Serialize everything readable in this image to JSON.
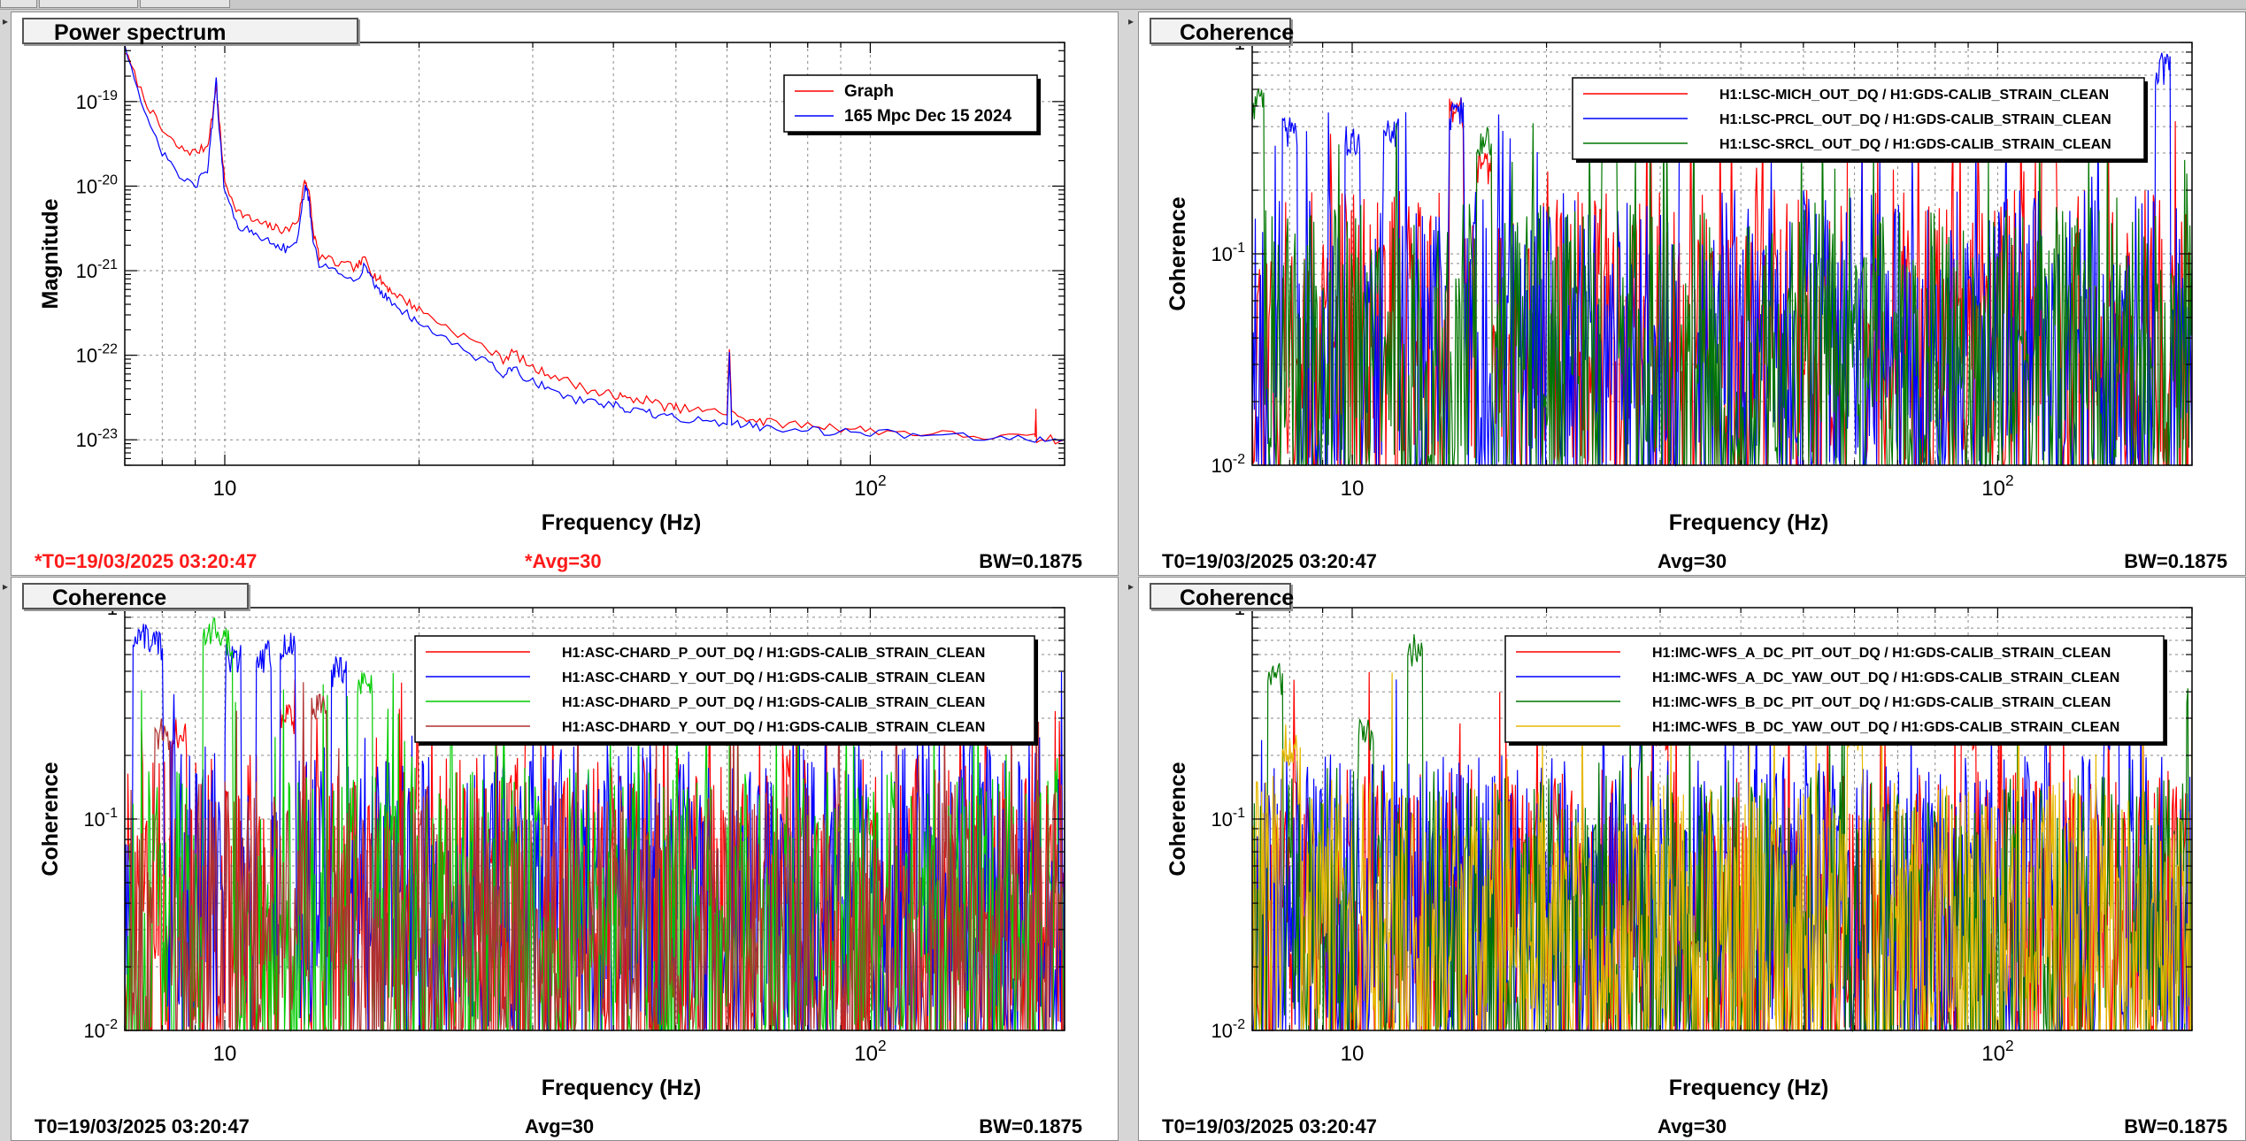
{
  "panels": [
    {
      "title": "Power spectrum",
      "footer": {
        "t0": "*T0=19/03/2025 03:20:47",
        "avg": "*Avg=30",
        "bw": "BW=0.1875",
        "highlight": true
      },
      "chart_data": {
        "type": "line",
        "title": "Power spectrum",
        "xlabel": "Frequency (Hz)",
        "ylabel": "Magnitude",
        "xscale": "log",
        "yscale": "log",
        "xlim": [
          7,
          200
        ],
        "ylim": [
          5e-24,
          5e-19
        ],
        "x_ticks": [
          10,
          100
        ],
        "x_tick_labels": [
          "10",
          "10^2"
        ],
        "y_ticks": [
          1e-23,
          1e-22,
          1e-21,
          1e-20,
          1e-19
        ],
        "y_tick_labels": [
          "10^-23",
          "10^-22",
          "10^-21",
          "10^-20",
          "10^-19"
        ],
        "grid": true,
        "legend_position": "top-right",
        "series": [
          {
            "name": "Graph",
            "color": "#ff0000",
            "x": [
              7,
              7.5,
              8,
              8.5,
              9,
              9.4,
              9.6,
              9.7,
              9.8,
              10,
              10.5,
              11,
              11.5,
              12,
              12.5,
              13,
              13.3,
              13.5,
              13.7,
              14,
              15,
              16,
              16.5,
              17,
              17.5,
              18,
              19,
              20,
              22,
              25,
              27,
              28,
              30,
              32,
              35,
              38,
              40,
              42,
              45,
              48,
              50,
              55,
              60,
              60.5,
              61,
              65,
              70,
              80,
              90,
              100,
              120,
              150,
              180,
              180.5,
              181,
              200
            ],
            "y": [
              4e-19,
              1.1e-19,
              4.5e-20,
              2.8e-20,
              2.5e-20,
              3e-20,
              8e-20,
              1.6e-19,
              6e-20,
              1.1e-20,
              5e-21,
              4e-21,
              3.5e-21,
              3.2e-21,
              3e-21,
              4e-21,
              1.2e-20,
              9e-21,
              3e-21,
              1.5e-21,
              1.2e-21,
              1.1e-21,
              1.4e-21,
              9e-22,
              7.5e-22,
              6e-22,
              4.5e-22,
              3.5e-22,
              2.2e-22,
              1.3e-22,
              9e-23,
              1.1e-22,
              7e-23,
              6e-23,
              4.5e-23,
              3.5e-23,
              3.5e-23,
              3e-23,
              3e-23,
              2.5e-23,
              2.4e-23,
              2.2e-23,
              2.1e-23,
              1.3e-22,
              2e-23,
              1.8e-23,
              1.6e-23,
              1.5e-23,
              1.4e-23,
              1.3e-23,
              1.2e-23,
              1.1e-23,
              1.05e-23,
              2.2e-23,
              1.05e-23,
              1e-23
            ]
          },
          {
            "name": "165 Mpc Dec 15 2024",
            "color": "#0000ff",
            "x": [
              7,
              7.5,
              8,
              8.5,
              9,
              9.4,
              9.6,
              9.7,
              9.8,
              10,
              10.5,
              11,
              11.5,
              12,
              12.5,
              13,
              13.3,
              13.5,
              13.7,
              14,
              15,
              16,
              16.5,
              17,
              17.5,
              18,
              19,
              20,
              22,
              25,
              27,
              28,
              30,
              32,
              35,
              38,
              40,
              42,
              45,
              48,
              50,
              55,
              60,
              60.5,
              61,
              65,
              70,
              80,
              90,
              100,
              120,
              150,
              180,
              200
            ],
            "y": [
              5e-19,
              7e-20,
              2.5e-20,
              1.3e-20,
              1e-20,
              1.6e-20,
              7e-20,
              1.8e-19,
              5e-20,
              8e-21,
              3.5e-21,
              2.8e-21,
              2.4e-21,
              2.1e-21,
              1.8e-21,
              2.5e-21,
              1e-20,
              7e-21,
              2.2e-21,
              1.2e-21,
              9e-22,
              8e-22,
              1.2e-21,
              7e-22,
              5.5e-22,
              4.5e-22,
              3.2e-22,
              2.5e-22,
              1.5e-22,
              9e-23,
              6e-23,
              7e-23,
              4.8e-23,
              4e-23,
              3e-23,
              2.6e-23,
              2.6e-23,
              2.2e-23,
              2.1e-23,
              1.9e-23,
              1.8e-23,
              1.7e-23,
              1.6e-23,
              1e-22,
              1.6e-23,
              1.5e-23,
              1.4e-23,
              1.3e-23,
              1.25e-23,
              1.2e-23,
              1.15e-23,
              1.1e-23,
              1.05e-23,
              1e-23
            ]
          }
        ]
      }
    },
    {
      "title": "Coherence",
      "footer": {
        "t0": "T0=19/03/2025 03:20:47",
        "avg": "Avg=30",
        "bw": "BW=0.1875",
        "highlight": false
      },
      "chart_data": {
        "type": "line",
        "title": "Coherence",
        "xlabel": "Frequency (Hz)",
        "ylabel": "Coherence",
        "xscale": "log",
        "yscale": "log",
        "xlim": [
          7,
          200
        ],
        "ylim": [
          0.01,
          1
        ],
        "x_ticks": [
          10,
          100
        ],
        "x_tick_labels": [
          "10",
          "10^2"
        ],
        "y_ticks": [
          0.01,
          0.1,
          1
        ],
        "y_tick_labels": [
          "10^-2",
          "10^-1",
          "1"
        ],
        "grid": true,
        "legend_position": "top-right",
        "series": [
          {
            "name": "H1:LSC-MICH_OUT_DQ / H1:GDS-CALIB_STRAIN_CLEAN",
            "color": "#ff0000",
            "seed": 11,
            "peaks": [
              [
                14.5,
                0.55
              ],
              [
                16,
                0.3
              ],
              [
                60,
                0.5
              ],
              [
                120,
                0.4
              ]
            ],
            "level": 0.04
          },
          {
            "name": "H1:LSC-PRCL_OUT_DQ / H1:GDS-CALIB_STRAIN_CLEAN",
            "color": "#0000ff",
            "seed": 23,
            "peaks": [
              [
                8,
                0.45
              ],
              [
                10,
                0.4
              ],
              [
                11.5,
                0.45
              ],
              [
                14.5,
                0.55
              ],
              [
                33,
                0.45
              ],
              [
                180,
                0.9
              ]
            ],
            "level": 0.04
          },
          {
            "name": "H1:LSC-SRCL_OUT_DQ / H1:GDS-CALIB_STRAIN_CLEAN",
            "color": "#007700",
            "seed": 37,
            "peaks": [
              [
                7.1,
                0.6
              ],
              [
                16,
                0.4
              ],
              [
                25,
                0.4
              ]
            ],
            "level": 0.035
          }
        ]
      }
    },
    {
      "title": "Coherence",
      "footer": {
        "t0": "T0=19/03/2025 03:20:47",
        "avg": "Avg=30",
        "bw": "BW=0.1875",
        "highlight": false
      },
      "chart_data": {
        "type": "line",
        "title": "Coherence",
        "xlabel": "Frequency (Hz)",
        "ylabel": "Coherence",
        "xscale": "log",
        "yscale": "log",
        "xlim": [
          7,
          200
        ],
        "ylim": [
          0.01,
          1
        ],
        "x_ticks": [
          10,
          100
        ],
        "x_tick_labels": [
          "10",
          "10^2"
        ],
        "y_ticks": [
          0.01,
          0.1,
          1
        ],
        "y_tick_labels": [
          "10^-2",
          "10^-1",
          "1"
        ],
        "grid": true,
        "legend_position": "top-right",
        "series": [
          {
            "name": "H1:ASC-CHARD_P_OUT_DQ / H1:GDS-CALIB_STRAIN_CLEAN",
            "color": "#ff0000",
            "seed": 41,
            "peaks": [
              [
                8.5,
                0.3
              ],
              [
                12.5,
                0.35
              ],
              [
                30,
                0.5
              ]
            ],
            "level": 0.04
          },
          {
            "name": "H1:ASC-CHARD_Y_OUT_DQ / H1:GDS-CALIB_STRAIN_CLEAN",
            "color": "#0000ff",
            "seed": 53,
            "peaks": [
              [
                7.4,
                0.85
              ],
              [
                7.8,
                0.8
              ],
              [
                10.3,
                0.7
              ],
              [
                11.5,
                0.7
              ],
              [
                12.5,
                0.8
              ],
              [
                15,
                0.6
              ]
            ],
            "level": 0.05
          },
          {
            "name": "H1:ASC-DHARD_P_OUT_DQ / H1:GDS-CALIB_STRAIN_CLEAN",
            "color": "#00cc00",
            "seed": 67,
            "peaks": [
              [
                9.5,
                0.9
              ],
              [
                10,
                0.8
              ],
              [
                16.5,
                0.5
              ]
            ],
            "level": 0.035
          },
          {
            "name": "H1:ASC-DHARD_Y_OUT_DQ / H1:GDS-CALIB_STRAIN_CLEAN",
            "color": "#b03030",
            "seed": 79,
            "peaks": [
              [
                8,
                0.3
              ],
              [
                14,
                0.4
              ]
            ],
            "level": 0.03
          }
        ]
      }
    },
    {
      "title": "Coherence",
      "footer": {
        "t0": "T0=19/03/2025 03:20:47",
        "avg": "Avg=30",
        "bw": "BW=0.1875",
        "highlight": false
      },
      "chart_data": {
        "type": "line",
        "title": "Coherence",
        "xlabel": "Frequency (Hz)",
        "ylabel": "Coherence",
        "xscale": "log",
        "yscale": "log",
        "xlim": [
          7,
          200
        ],
        "ylim": [
          0.01,
          1
        ],
        "x_ticks": [
          10,
          100
        ],
        "x_tick_labels": [
          "10",
          "10^2"
        ],
        "y_ticks": [
          0.01,
          0.1,
          1
        ],
        "y_tick_labels": [
          "10^-2",
          "10^-1",
          "1"
        ],
        "grid": true,
        "legend_position": "top-right",
        "series": [
          {
            "name": "H1:IMC-WFS_A_DC_PIT_OUT_DQ / H1:GDS-CALIB_STRAIN_CLEAN",
            "color": "#ff0000",
            "seed": 83,
            "peaks": [
              [
                30,
                0.3
              ],
              [
                90,
                0.3
              ]
            ],
            "level": 0.035
          },
          {
            "name": "H1:IMC-WFS_A_DC_YAW_OUT_DQ / H1:GDS-CALIB_STRAIN_CLEAN",
            "color": "#0000ff",
            "seed": 97,
            "peaks": [
              [
                40,
                0.35
              ],
              [
                150,
                0.3
              ]
            ],
            "level": 0.04
          },
          {
            "name": "H1:IMC-WFS_B_DC_PIT_OUT_DQ / H1:GDS-CALIB_STRAIN_CLEAN",
            "color": "#007700",
            "seed": 101,
            "peaks": [
              [
                7.6,
                0.55
              ],
              [
                12.5,
                0.75
              ],
              [
                10.5,
                0.3
              ]
            ],
            "level": 0.035
          },
          {
            "name": "H1:IMC-WFS_B_DC_YAW_OUT_DQ / H1:GDS-CALIB_STRAIN_CLEAN",
            "color": "#e6b800",
            "seed": 113,
            "peaks": [
              [
                8,
                0.25
              ],
              [
                60,
                0.3
              ]
            ],
            "level": 0.03
          }
        ]
      }
    }
  ]
}
